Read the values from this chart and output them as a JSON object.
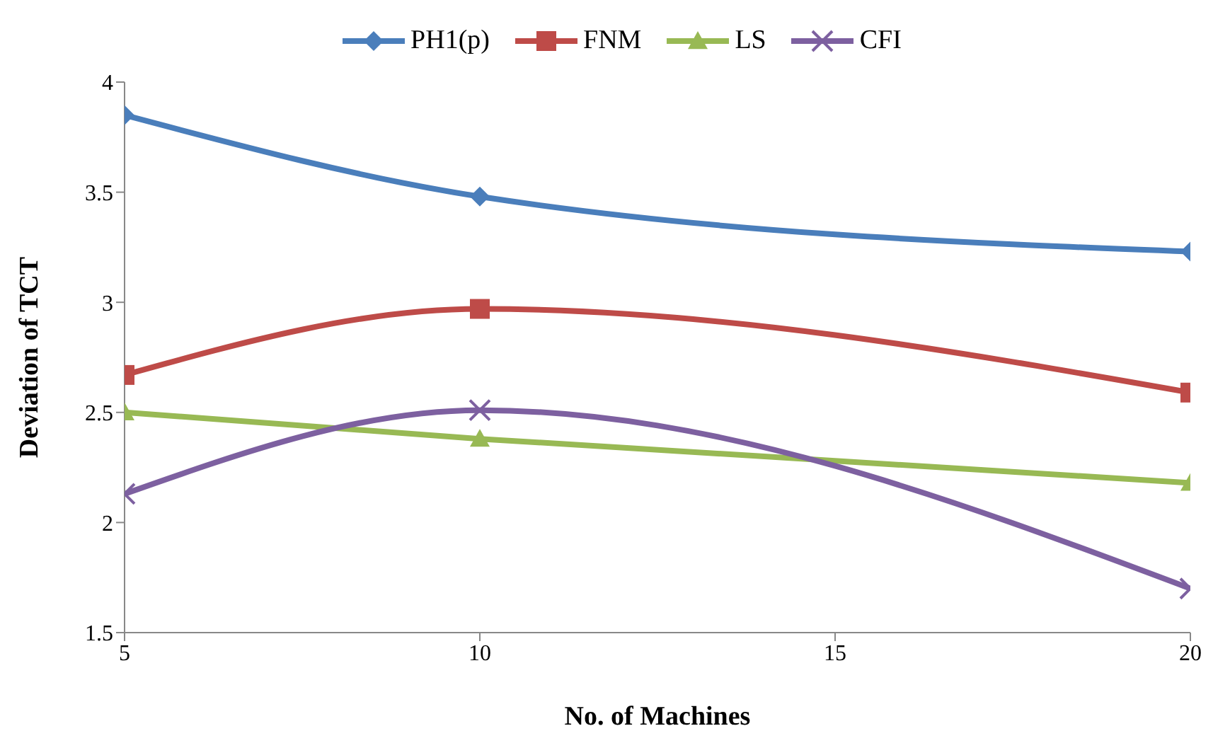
{
  "chart_data": {
    "type": "line",
    "xlabel": "No. of Machines",
    "ylabel": "Deviation of TCT",
    "x": [
      5,
      10,
      20
    ],
    "series": [
      {
        "name": "PH1(p)",
        "color": "#4a7ebb",
        "marker": "diamond",
        "values": [
          3.85,
          3.48,
          3.23
        ]
      },
      {
        "name": "FNM",
        "color": "#be4b48",
        "marker": "square",
        "values": [
          2.67,
          2.97,
          2.59
        ]
      },
      {
        "name": "LS",
        "color": "#98b954",
        "marker": "triangle",
        "values": [
          2.5,
          2.38,
          2.18
        ]
      },
      {
        "name": "CFI",
        "color": "#7d60a0",
        "marker": "cross",
        "values": [
          2.13,
          2.51,
          1.7
        ]
      }
    ],
    "xlim": [
      5,
      20
    ],
    "xticks": [
      5,
      10,
      15,
      20
    ],
    "ylim": [
      1.5,
      4
    ],
    "yticks": [
      1.5,
      2,
      2.5,
      3,
      3.5,
      4
    ],
    "grid": false,
    "legend": "top",
    "line_style": "solid"
  }
}
